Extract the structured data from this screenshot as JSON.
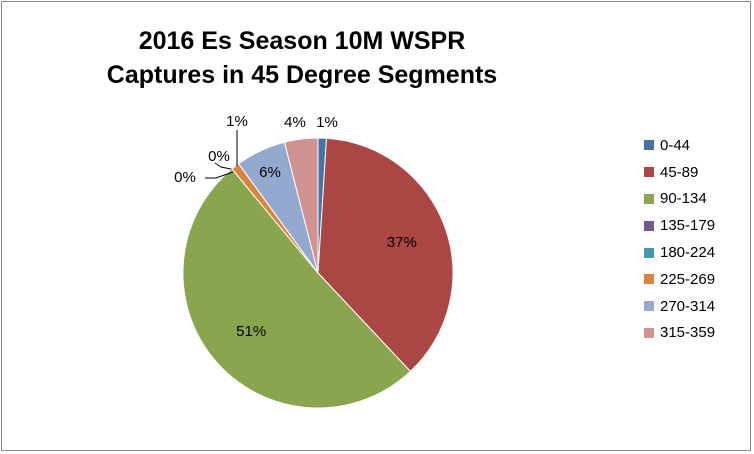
{
  "chart_data": {
    "type": "pie",
    "title_lines": [
      "2016 Es Season 10M WSPR",
      "Captures in 45 Degree Segments"
    ],
    "categories": [
      "0-44",
      "45-89",
      "90-134",
      "135-179",
      "180-224",
      "225-269",
      "270-314",
      "315-359"
    ],
    "values": [
      1,
      37,
      51,
      0,
      0,
      1,
      6,
      4
    ],
    "labels": [
      "1%",
      "37%",
      "51%",
      "0%",
      "0%",
      "1%",
      "6%",
      "4%"
    ],
    "colors": [
      "#4572A7",
      "#AA4643",
      "#89A54E",
      "#71588F",
      "#4198AF",
      "#DB843D",
      "#93A9CF",
      "#D19392"
    ],
    "legend_position": "right"
  }
}
